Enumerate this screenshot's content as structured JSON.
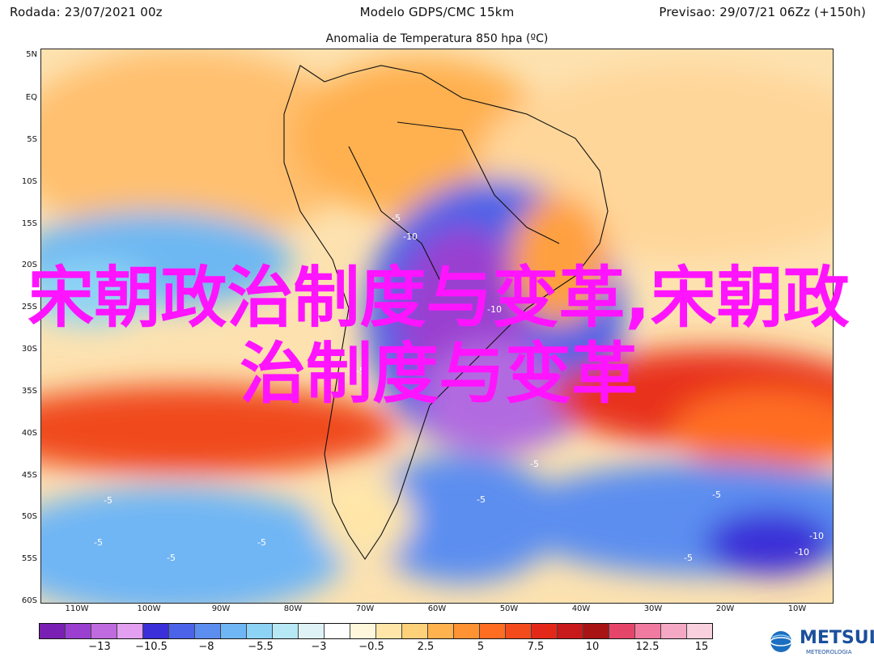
{
  "header": {
    "left": "Rodada: 23/07/2021 00z",
    "center": "Modelo GDPS/CMC 15km",
    "right": "Previsao: 29/07/21 06Zz (+150h)"
  },
  "map": {
    "title": "Anomalia de Temperatura 850 hpa (ºC)",
    "lat_labels": [
      "5N",
      "EQ",
      "5S",
      "10S",
      "15S",
      "20S",
      "25S",
      "30S",
      "35S",
      "40S",
      "45S",
      "50S",
      "55S",
      "60S"
    ],
    "lon_labels": [
      "110W",
      "100W",
      "90W",
      "80W",
      "70W",
      "60W",
      "50W",
      "40W",
      "30W",
      "20W",
      "10W"
    ],
    "contour_labels": [
      "-5",
      "-10",
      "-5",
      "-10",
      "-5",
      "-5",
      "-5",
      "-5",
      "-5",
      "-5",
      "-10",
      "-10",
      "-5",
      "-5"
    ]
  },
  "colorbar": {
    "colors": [
      "#7a1fb3",
      "#9a3fd0",
      "#c06ae0",
      "#e3a0f0",
      "#3a2fd8",
      "#4b63e8",
      "#5c8ef0",
      "#6fb6f5",
      "#8dd3f5",
      "#b6e8f5",
      "#dff3f7",
      "#ffffff",
      "#fff7dc",
      "#ffe6a8",
      "#ffd07a",
      "#ffb24e",
      "#ff9232",
      "#ff6d22",
      "#f44b1c",
      "#e3281a",
      "#c81a1a",
      "#a81414",
      "#e6456a",
      "#f07aa0",
      "#f5a8c4",
      "#f8d0de"
    ],
    "labels": [
      "−13",
      "−10.5",
      "−8",
      "−5.5",
      "−3",
      "−0.5",
      "2.5",
      "5",
      "7.5",
      "10",
      "12.5",
      "15"
    ]
  },
  "overlay": {
    "text": "宋朝政治制度与变革,宋朝政治制度与变革"
  },
  "brand": {
    "name": "METSUL",
    "sub": "METEOROLOGIA"
  }
}
